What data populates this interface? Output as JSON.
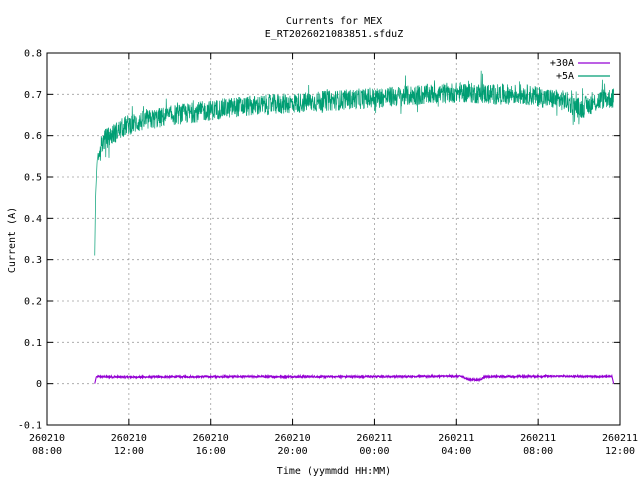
{
  "chart_data": {
    "type": "line",
    "title": "Currents for MEX",
    "subtitle": "E_RT2026021083851.sfduZ",
    "xlabel": "Time (yymmdd HH:MM)",
    "ylabel": "Current (A)",
    "ylim": [
      -0.1,
      0.8
    ],
    "yticks": [
      "-0.1",
      "0",
      "0.1",
      "0.2",
      "0.3",
      "0.4",
      "0.5",
      "0.6",
      "0.7",
      "0.8"
    ],
    "xlim_hours": [
      0,
      36
    ],
    "xticks": [
      {
        "date": "260210",
        "time": "08:00"
      },
      {
        "date": "260210",
        "time": "12:00"
      },
      {
        "date": "260210",
        "time": "16:00"
      },
      {
        "date": "260210",
        "time": "20:00"
      },
      {
        "date": "260211",
        "time": "00:00"
      },
      {
        "date": "260211",
        "time": "04:00"
      },
      {
        "date": "260211",
        "time": "08:00"
      },
      {
        "date": "260211",
        "time": "12:00"
      }
    ],
    "grid": true,
    "legend_position": "top-right",
    "series": [
      {
        "name": "+30A",
        "color": "#9400d3",
        "x_hours": [
          3.0,
          3.1,
          5,
          10,
          15,
          20,
          25,
          26.0,
          26.5,
          27.2,
          27.5,
          28,
          32,
          35.5,
          35.6
        ],
        "values": [
          0.0,
          0.017,
          0.016,
          0.017,
          0.017,
          0.017,
          0.018,
          0.018,
          0.01,
          0.009,
          0.017,
          0.017,
          0.018,
          0.017,
          0.0
        ]
      },
      {
        "name": "+5A",
        "color": "#009e73",
        "x_hours": [
          3.0,
          3.05,
          3.15,
          3.3,
          3.6,
          4.0,
          5.0,
          6.0,
          8.0,
          10.0,
          12.0,
          14.0,
          16.0,
          18.0,
          20.0,
          22.0,
          24.0,
          26.0,
          28.0,
          30.0,
          31.5,
          32.5,
          33.5,
          35.0,
          35.6
        ],
        "values": [
          0.31,
          0.45,
          0.54,
          0.57,
          0.59,
          0.6,
          0.625,
          0.635,
          0.65,
          0.66,
          0.67,
          0.675,
          0.68,
          0.685,
          0.69,
          0.695,
          0.7,
          0.705,
          0.7,
          0.7,
          0.69,
          0.685,
          0.665,
          0.69,
          0.69
        ]
      }
    ]
  }
}
